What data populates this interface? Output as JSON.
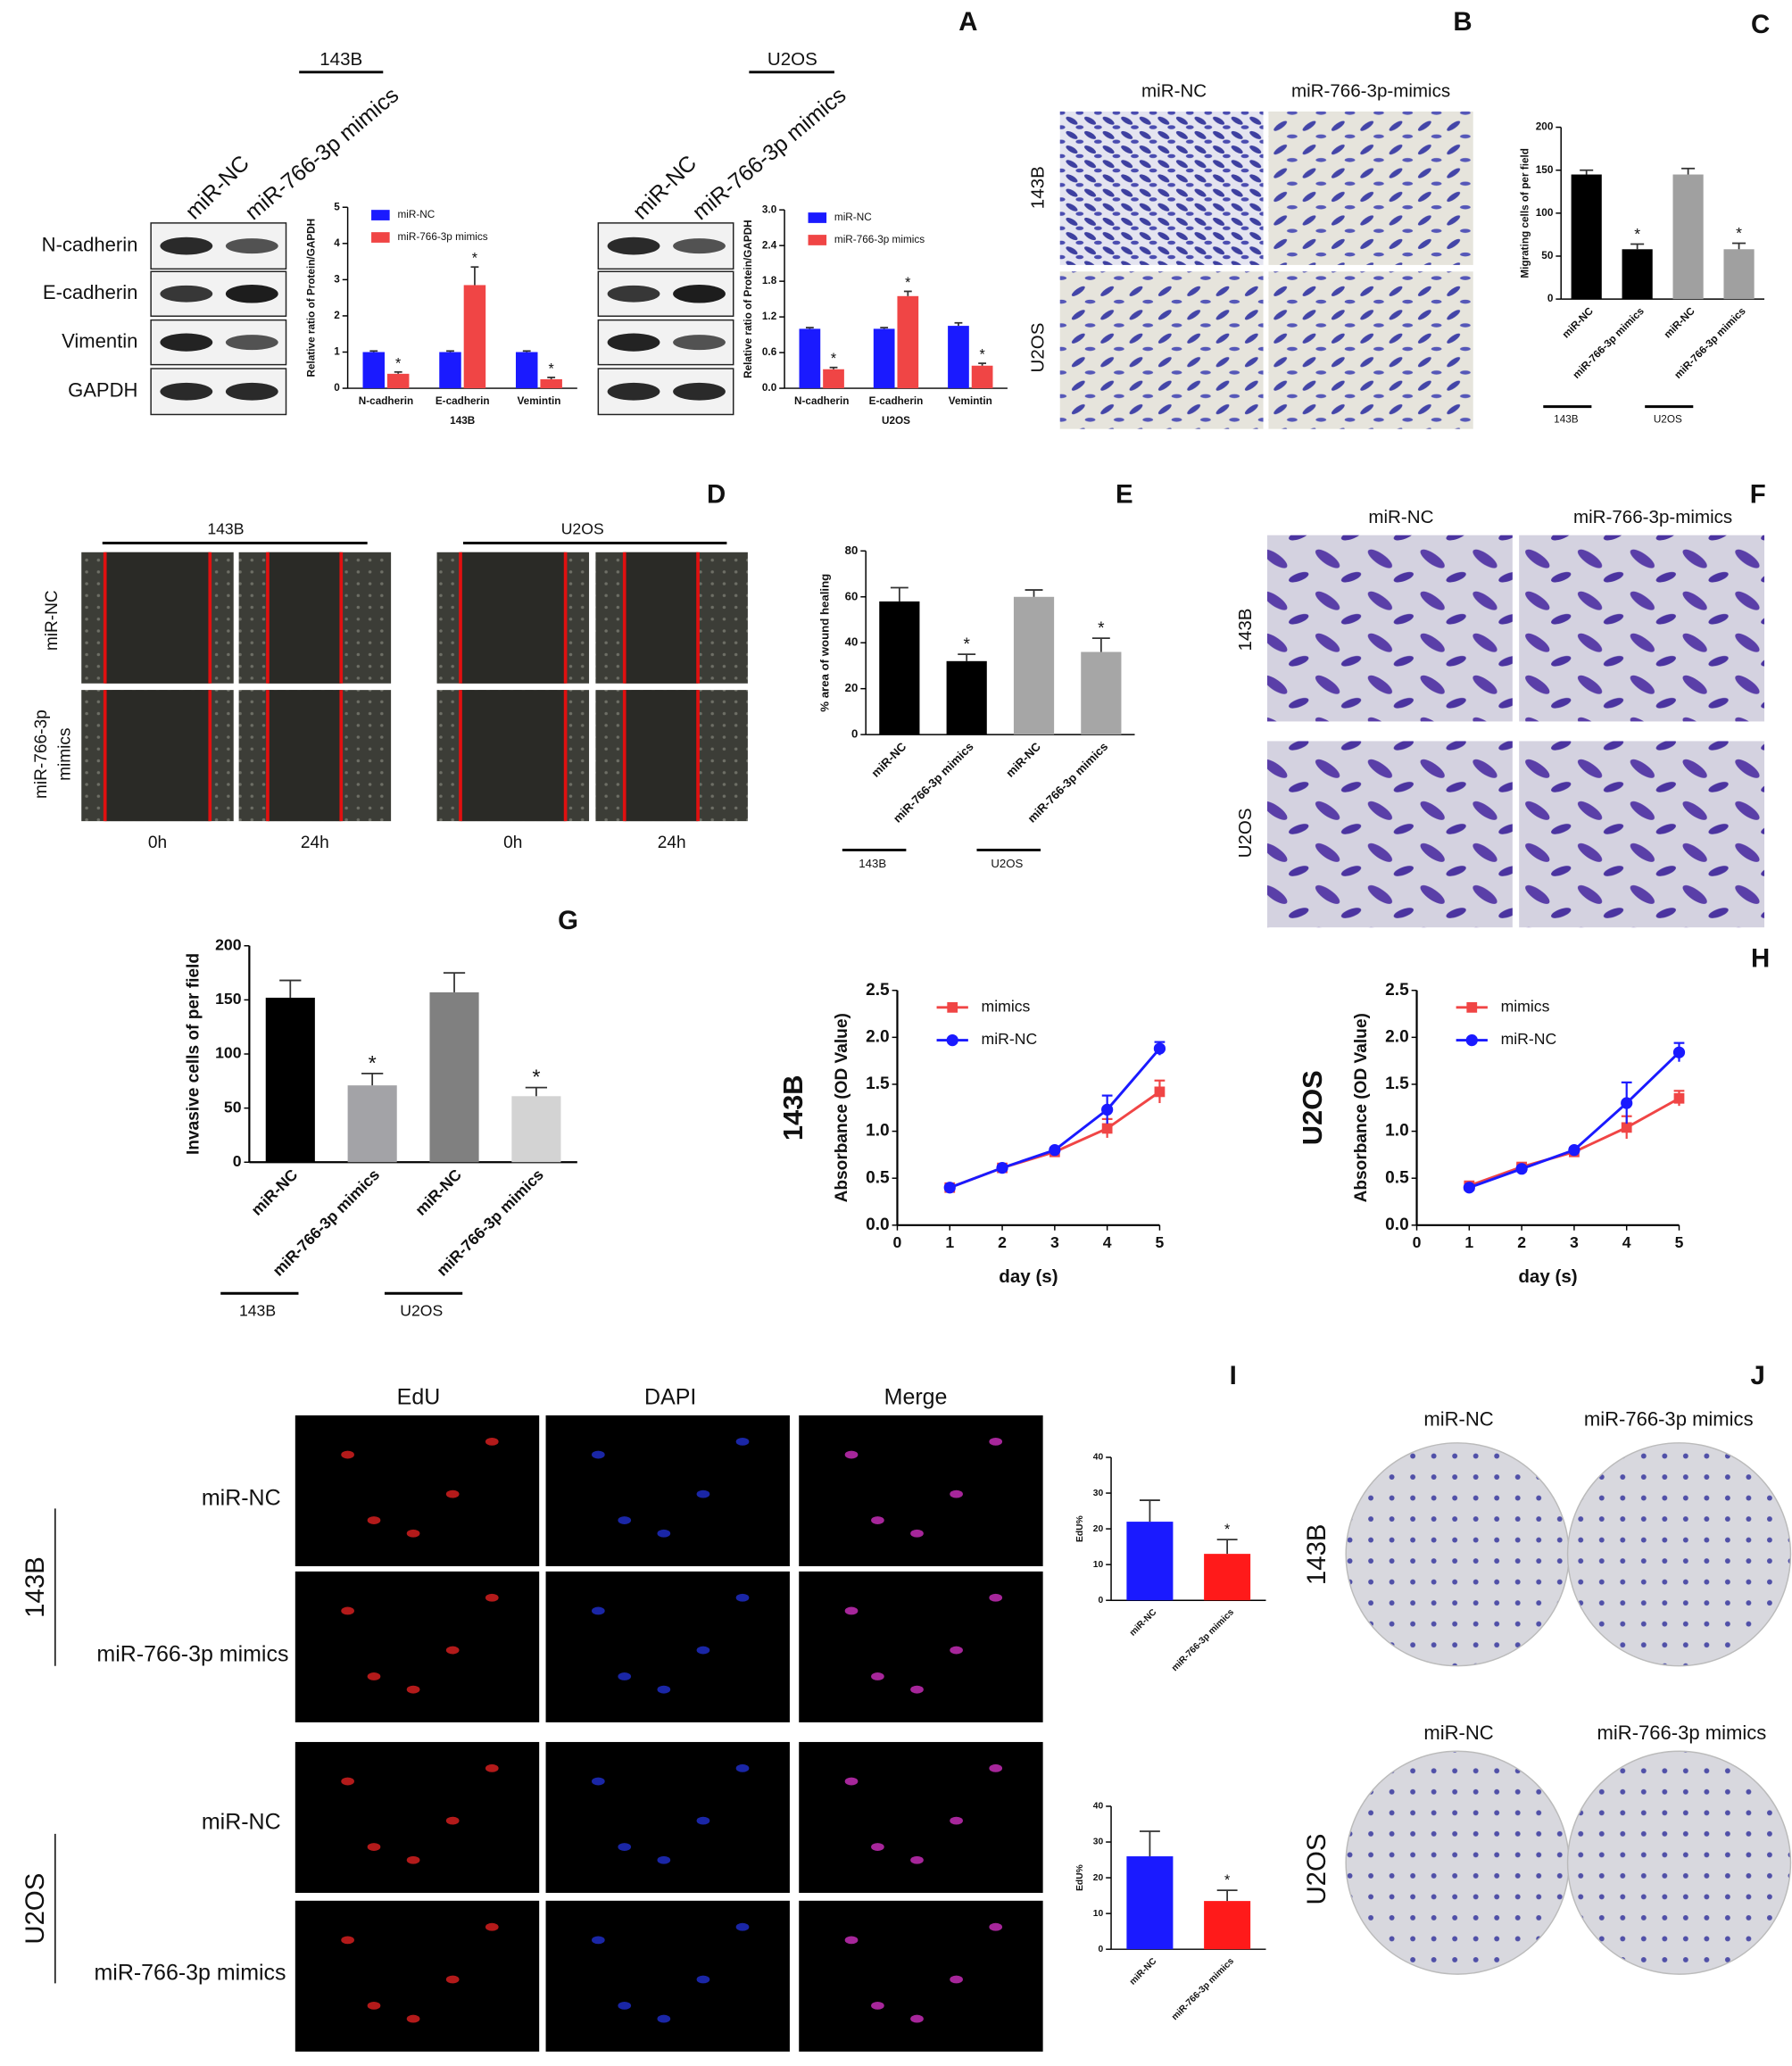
{
  "figure": {
    "panels": [
      "A",
      "B",
      "C",
      "D",
      "E",
      "F",
      "G",
      "H",
      "I",
      "J"
    ],
    "western": {
      "cells": [
        "143B",
        "U2OS"
      ],
      "lanes": [
        "miR-NC",
        "miR-766-3p mimics"
      ],
      "proteins": [
        "N-cadherin",
        "E-cadherin",
        "Vimentin",
        "GAPDH"
      ]
    },
    "transwell_migration": {
      "columns": [
        "miR-NC",
        "miR-766-3p-mimics"
      ],
      "rows": [
        "143B",
        "U2OS"
      ]
    },
    "wound": {
      "cells": [
        "143B",
        "U2OS"
      ],
      "rows": [
        "miR-NC",
        [
          "miR-766-3p",
          "mimics"
        ]
      ],
      "times": [
        "0h",
        "24h"
      ]
    },
    "transwell_invasion": {
      "columns": [
        "miR-NC",
        "miR-766-3p-mimics"
      ],
      "rows": [
        "143B",
        "U2OS"
      ]
    },
    "edu": {
      "columns": [
        "EdU",
        "DAPI",
        "Merge"
      ],
      "rows": [
        "miR-NC",
        "miR-766-3p mimics"
      ],
      "cells": [
        "143B",
        "U2OS"
      ]
    },
    "colony": {
      "columns": [
        "miR-NC",
        "miR-766-3p mimics"
      ],
      "cells": [
        "143B",
        "U2OS"
      ]
    }
  },
  "chart_data": [
    {
      "type": "bar",
      "categories": [
        "N-cadherin",
        "E-cadherin",
        "Vemintin"
      ],
      "series": [
        {
          "name": "miR-NC",
          "color": "#1a1aff",
          "values": [
            1,
            1,
            1
          ],
          "errors": [
            0.03,
            0.03,
            0.03
          ]
        },
        {
          "name": "miR-766-3p mimics",
          "color": "#f04545",
          "values": [
            0.4,
            2.85,
            0.25
          ],
          "errors": [
            0.05,
            0.5,
            0.05
          ],
          "significance": [
            "*",
            "*",
            "*"
          ]
        }
      ],
      "ylabel": "Relative ratio of Protein/GAPDH",
      "xlabel": "143B",
      "ylim": [
        0,
        5
      ],
      "yticks": [
        0,
        1,
        2,
        3,
        4,
        5
      ],
      "legend": "upper left"
    },
    {
      "type": "bar",
      "categories": [
        "N-cadherin",
        "E-cadherin",
        "Vemintin"
      ],
      "series": [
        {
          "name": "miR-NC",
          "color": "#1a1aff",
          "values": [
            1,
            1,
            1.05
          ],
          "errors": [
            0.02,
            0.02,
            0.05
          ]
        },
        {
          "name": "miR-766-3p mimics",
          "color": "#f04545",
          "values": [
            0.32,
            1.55,
            0.38
          ],
          "errors": [
            0.03,
            0.08,
            0.04
          ],
          "significance": [
            "*",
            "*",
            "*"
          ]
        }
      ],
      "ylabel": "Relative ratio of Protein/GAPDH",
      "xlabel": "U2OS",
      "ylim": [
        0,
        3
      ],
      "yticks": [
        {
          "value": 0,
          "label": "0.0"
        },
        0.6,
        1.2,
        1.8,
        2.4,
        {
          "value": 3,
          "label": "3.0"
        }
      ],
      "legend": "upper left"
    },
    {
      "type": "bar",
      "categories": [
        "miR-NC",
        "miR-766-3p mimics",
        "miR-NC",
        "miR-766-3p mimics"
      ],
      "values": [
        145,
        58,
        145,
        58
      ],
      "errors": [
        5,
        6,
        7,
        7
      ],
      "colors": [
        "#000000",
        "#000000",
        "#a0a0a0",
        "#a0a0a0"
      ],
      "significance": [
        null,
        "*",
        null,
        "*"
      ],
      "groups": [
        "143B",
        "U2OS"
      ],
      "ylabel": "Migrating cells of per field",
      "ylim": [
        0,
        200
      ],
      "yticks": [
        0,
        50,
        100,
        150,
        200
      ]
    },
    {
      "type": "bar",
      "categories": [
        "miR-NC",
        "miR-766-3p mimics",
        "miR-NC",
        "miR-766-3p mimics"
      ],
      "values": [
        58,
        32,
        60,
        36
      ],
      "errors": [
        6,
        3,
        3,
        6
      ],
      "colors": [
        "#000000",
        "#000000",
        "#a6a6a6",
        "#a6a6a6"
      ],
      "significance": [
        null,
        "*",
        null,
        "*"
      ],
      "groups": [
        "143B",
        "U2OS"
      ],
      "ylabel": "% area of wound healing",
      "ylim": [
        0,
        80
      ],
      "yticks": [
        0,
        20,
        40,
        60,
        80
      ]
    },
    {
      "type": "bar",
      "categories": [
        "miR-NC",
        "miR-766-3p mimics",
        "miR-NC",
        "miR-766-3p mimics"
      ],
      "values": [
        152,
        71,
        157,
        61
      ],
      "errors": [
        16,
        11,
        18,
        8
      ],
      "colors": [
        "#000000",
        "#a3a3a7",
        "#808080",
        "#d3d3d3"
      ],
      "significance": [
        null,
        "*",
        null,
        "*"
      ],
      "groups": [
        "143B",
        "U2OS"
      ],
      "ylabel": "Invasive cells of per field",
      "ylim": [
        0,
        200
      ],
      "yticks": [
        0,
        50,
        100,
        150,
        200
      ]
    },
    {
      "type": "line",
      "x": [
        1,
        2,
        3,
        4,
        5
      ],
      "series": [
        {
          "name": "mimics",
          "color": "#f04545",
          "marker": "square",
          "values": [
            0.4,
            0.61,
            0.78,
            1.03,
            1.42
          ],
          "errors": [
            0.02,
            0.02,
            0.03,
            0.1,
            0.12
          ]
        },
        {
          "name": "miR-NC",
          "color": "#1a1aff",
          "marker": "circle",
          "values": [
            0.4,
            0.61,
            0.8,
            1.23,
            1.88
          ],
          "errors": [
            0.02,
            0.02,
            0.02,
            0.15,
            0.07
          ]
        }
      ],
      "xlim": [
        0,
        5
      ],
      "xticks": [
        0,
        1,
        2,
        3,
        4,
        5
      ],
      "ylim": [
        0,
        2.5
      ],
      "yticks": [
        {
          "value": 0,
          "label": "0.0"
        },
        0.5,
        {
          "value": 1,
          "label": "1.0"
        },
        1.5,
        {
          "value": 2,
          "label": "2.0"
        },
        2.5
      ],
      "xlabel": "day (s)",
      "ylabel": "Absorbance (OD Value)",
      "label": "143B",
      "legend": "upper left"
    },
    {
      "type": "line",
      "x": [
        1,
        2,
        3,
        4,
        5
      ],
      "series": [
        {
          "name": "mimics",
          "color": "#f04545",
          "marker": "square",
          "values": [
            0.42,
            0.62,
            0.78,
            1.04,
            1.35
          ],
          "errors": [
            0.03,
            0.03,
            0.03,
            0.12,
            0.08
          ]
        },
        {
          "name": "miR-NC",
          "color": "#1a1aff",
          "marker": "circle",
          "values": [
            0.4,
            0.6,
            0.8,
            1.3,
            1.84
          ],
          "errors": [
            0.02,
            0.02,
            0.02,
            0.22,
            0.1
          ]
        }
      ],
      "xlim": [
        0,
        5
      ],
      "xticks": [
        0,
        1,
        2,
        3,
        4,
        5
      ],
      "ylim": [
        0,
        2.5
      ],
      "yticks": [
        {
          "value": 0,
          "label": "0.0"
        },
        0.5,
        {
          "value": 1,
          "label": "1.0"
        },
        1.5,
        {
          "value": 2,
          "label": "2.0"
        },
        2.5
      ],
      "xlabel": "day (s)",
      "ylabel": "Absorbance (OD Value)",
      "label": "U2OS",
      "legend": "upper left"
    },
    {
      "type": "bar",
      "categories": [
        "miR-NC",
        "miR-766-3p mimics"
      ],
      "values": [
        22,
        13
      ],
      "errors": [
        6,
        4
      ],
      "colors": [
        "#1a1aff",
        "#ff1a1a"
      ],
      "significance": [
        null,
        "*"
      ],
      "ylabel": "EdU%",
      "ylim": [
        0,
        40
      ],
      "yticks": [
        0,
        10,
        20,
        30,
        40
      ]
    },
    {
      "type": "bar",
      "categories": [
        "miR-NC",
        "miR-766-3p mimics"
      ],
      "values": [
        26,
        13.5
      ],
      "errors": [
        7,
        3
      ],
      "colors": [
        "#1a1aff",
        "#ff1a1a"
      ],
      "significance": [
        null,
        "*"
      ],
      "ylabel": "EdU%",
      "ylim": [
        0,
        40
      ],
      "yticks": [
        0,
        10,
        20,
        30,
        40
      ]
    }
  ]
}
